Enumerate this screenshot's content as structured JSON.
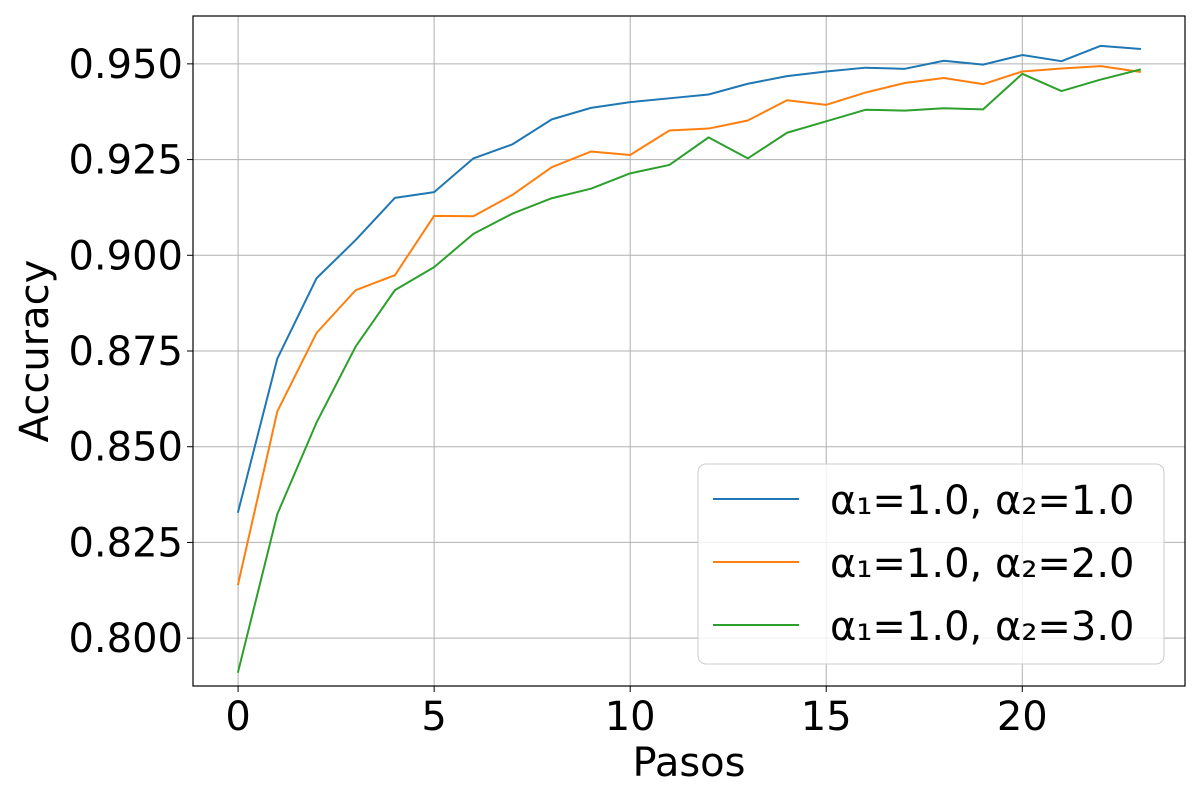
{
  "chart_data": {
    "type": "line",
    "title": "",
    "xlabel": "Pasos",
    "ylabel": "Accuracy",
    "xlim": [
      -1.15,
      24.15
    ],
    "ylim": [
      0.7875,
      0.9625
    ],
    "xticks": [
      0,
      5,
      10,
      15,
      20
    ],
    "xtick_labels": [
      "0",
      "5",
      "10",
      "15",
      "20"
    ],
    "yticks": [
      0.8,
      0.825,
      0.85,
      0.875,
      0.9,
      0.925,
      0.95
    ],
    "ytick_labels": [
      "0.800",
      "0.825",
      "0.850",
      "0.875",
      "0.900",
      "0.925",
      "0.950"
    ],
    "grid": true,
    "legend_position": "lower-right",
    "x": [
      0,
      1,
      2,
      3,
      4,
      5,
      6,
      7,
      8,
      9,
      10,
      11,
      12,
      13,
      14,
      15,
      16,
      17,
      18,
      19,
      20,
      21,
      22,
      23
    ],
    "series": [
      {
        "name": "α₁=1.0, α₂=1.0",
        "color": "#1f77b4",
        "values": [
          0.833,
          0.873,
          0.894,
          0.904,
          0.915,
          0.9165,
          0.9253,
          0.929,
          0.9355,
          0.9385,
          0.94,
          0.941,
          0.942,
          0.9448,
          0.9468,
          0.948,
          0.949,
          0.9487,
          0.9508,
          0.9498,
          0.9523,
          0.9507,
          0.9547,
          0.9539
        ]
      },
      {
        "name": "α₁=1.0, α₂=2.0",
        "color": "#ff7f0e",
        "values": [
          0.8141,
          0.8592,
          0.8797,
          0.8909,
          0.8948,
          0.9103,
          0.9102,
          0.9158,
          0.923,
          0.9271,
          0.9262,
          0.9326,
          0.9331,
          0.9352,
          0.9405,
          0.9393,
          0.9425,
          0.945,
          0.9463,
          0.9447,
          0.948,
          0.9488,
          0.9494,
          0.9479
        ]
      },
      {
        "name": "α₁=1.0, α₂=3.0",
        "color": "#2ca02c",
        "values": [
          0.7912,
          0.8324,
          0.8563,
          0.8762,
          0.8909,
          0.8969,
          0.9056,
          0.9109,
          0.9149,
          0.9174,
          0.9214,
          0.9236,
          0.9308,
          0.9253,
          0.932,
          0.935,
          0.938,
          0.9378,
          0.9384,
          0.9381,
          0.9474,
          0.9429,
          0.9459,
          0.9485
        ]
      }
    ]
  }
}
